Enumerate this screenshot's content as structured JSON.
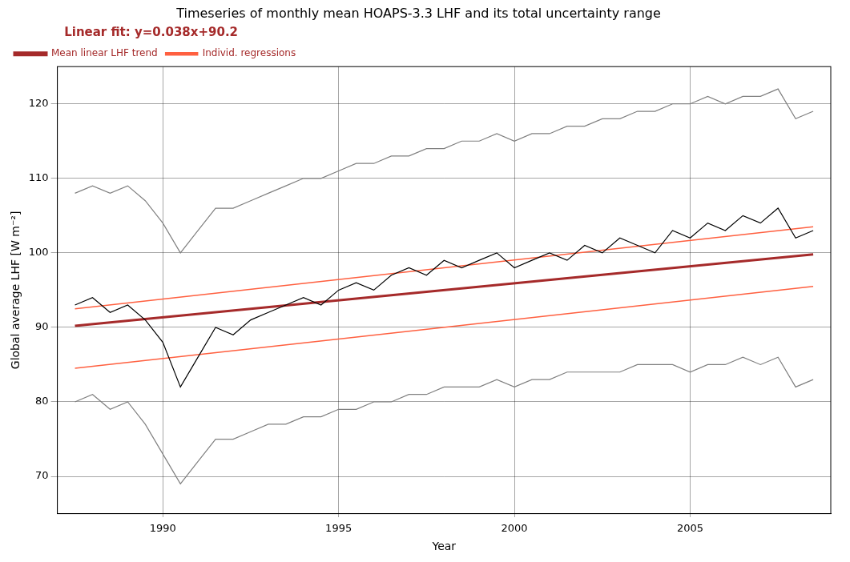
{
  "chart_data": {
    "type": "line",
    "title": "Timeseries of monthly mean HOAPS-3.3 LHF and its total uncertainty range",
    "annotations": [
      "Linear fit: y=0.038x+90.2"
    ],
    "x_label": "Year",
    "y_label": "Global average LHF [W m⁻²]",
    "x": [
      1987.5,
      1988,
      1988.5,
      1989,
      1989.5,
      1990,
      1990.5,
      1991,
      1991.5,
      1992,
      1992.5,
      1993,
      1993.5,
      1994,
      1994.5,
      1995,
      1995.5,
      1996,
      1996.5,
      1997,
      1997.5,
      1998,
      1998.5,
      1999,
      1999.5,
      2000,
      2000.5,
      2001,
      2001.5,
      2002,
      2002.5,
      2003,
      2003.5,
      2004,
      2004.5,
      2005,
      2005.5,
      2006,
      2006.5,
      2007,
      2007.5,
      2008,
      2008.5
    ],
    "series": [
      {
        "color": "#000000",
        "line_style": "solid",
        "marker": "none",
        "values": [
          93,
          94,
          92,
          93,
          91,
          88,
          82,
          86,
          90,
          89,
          91,
          92,
          93,
          94,
          93,
          95,
          96,
          95,
          97,
          98,
          97,
          99,
          98,
          99,
          100,
          98,
          99,
          100,
          99,
          101,
          100,
          102,
          101,
          100,
          103,
          102,
          104,
          103,
          105,
          104,
          106,
          102,
          103
        ]
      },
      {
        "color": "#808080",
        "line_style": "solid",
        "marker": "none",
        "values": [
          108,
          109,
          108,
          109,
          107,
          104,
          100,
          103,
          106,
          106,
          107,
          108,
          109,
          110,
          110,
          111,
          112,
          112,
          113,
          113,
          114,
          114,
          115,
          115,
          116,
          115,
          116,
          116,
          117,
          117,
          118,
          118,
          119,
          119,
          120,
          120,
          121,
          120,
          121,
          121,
          122,
          118,
          119
        ]
      },
      {
        "color": "#808080",
        "line_style": "solid",
        "marker": "none",
        "values": [
          80,
          81,
          79,
          80,
          77,
          73,
          69,
          72,
          75,
          75,
          76,
          77,
          77,
          78,
          78,
          79,
          79,
          80,
          80,
          81,
          81,
          82,
          82,
          82,
          83,
          82,
          83,
          83,
          84,
          84,
          84,
          84,
          85,
          85,
          85,
          84,
          85,
          85,
          86,
          85,
          86,
          82,
          83
        ]
      },
      {
        "name": "Mean linear LHF trend",
        "color": "#a52a2a",
        "line_style": "solid",
        "marker": "none",
        "x": [
          1987.5,
          2008.5
        ],
        "values": [
          90.2,
          99.8
        ]
      },
      {
        "name": "Individ. regressions",
        "color": "#ff6040",
        "line_style": "solid",
        "marker": "none",
        "x": [
          1987.5,
          2008.5
        ],
        "values": [
          92.5,
          103.5
        ]
      },
      {
        "color": "#ff6040",
        "line_style": "solid",
        "marker": "none",
        "x": [
          1987.5,
          2008.5
        ],
        "values": [
          84.5,
          95.5
        ]
      }
    ],
    "xlim": [
      1987,
      2009
    ],
    "xticks": [
      1990,
      1995,
      2000,
      2005
    ],
    "ylim": [
      65,
      125
    ],
    "yticks": [
      70,
      80,
      90,
      100,
      110,
      120
    ],
    "grid": true,
    "legend": "top-left"
  }
}
